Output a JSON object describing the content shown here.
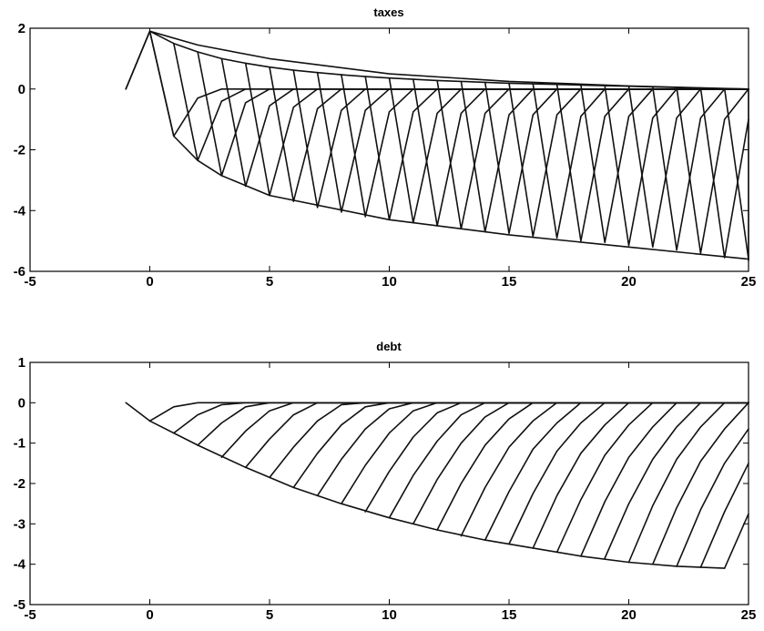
{
  "chart_data": [
    {
      "type": "line",
      "title": "taxes",
      "xlabel": "",
      "ylabel": "",
      "xlim": [
        -5,
        25
      ],
      "ylim": [
        -6,
        2
      ],
      "xticks": [
        -5,
        0,
        5,
        10,
        15,
        20,
        25
      ],
      "yticks": [
        -6,
        -4,
        -2,
        0,
        2
      ],
      "xtick_labels": [
        "-5",
        "0",
        "5",
        "10",
        "15",
        "20",
        "25"
      ],
      "ytick_labels": [
        "-6",
        "-4",
        "-2",
        "0",
        "2"
      ],
      "grid": false,
      "legend": "none",
      "description": "Family of impulse-response paths of taxes, one starting at each period s = -1..25; each path jumps to an upper envelope at s, then drops sharply at s+1 and decays back to 0.",
      "envelopes": [
        {
          "x": [
            -1,
            0,
            2,
            5,
            10,
            15,
            20,
            25
          ],
          "y": [
            0,
            1.9,
            1.45,
            1.0,
            0.5,
            0.25,
            0.1,
            0
          ]
        },
        {
          "x": [
            0,
            1,
            2,
            3,
            5,
            10,
            15,
            20,
            25
          ],
          "y": [
            1.9,
            -1.55,
            -2.35,
            -2.85,
            -3.5,
            -4.3,
            -4.8,
            -5.2,
            -5.6
          ]
        }
      ],
      "series": [
        {
          "x": [
            -1,
            0,
            1,
            2,
            3,
            4,
            5,
            6,
            7,
            8,
            9,
            10,
            11,
            12,
            13,
            14,
            15,
            16,
            17,
            18,
            19,
            20,
            21,
            22,
            23,
            24,
            25
          ],
          "y": [
            0,
            1.9,
            1.5,
            1.22,
            1.0,
            0.85,
            0.72,
            0.62,
            0.54,
            0.47,
            0.41,
            0.36,
            0.32,
            0.28,
            0.25,
            0.22,
            0.19,
            0.17,
            0.15,
            0.13,
            0.11,
            0.09,
            0.07,
            0.05,
            0.03,
            0.01,
            0
          ]
        },
        {
          "x": [
            0,
            1,
            2,
            3,
            25
          ],
          "y": [
            1.9,
            -1.55,
            -0.3,
            0,
            0
          ]
        },
        {
          "x": [
            1,
            2,
            3,
            4,
            25
          ],
          "y": [
            1.5,
            -2.35,
            -0.4,
            0,
            0
          ]
        },
        {
          "x": [
            2,
            3,
            4,
            5,
            25
          ],
          "y": [
            1.22,
            -2.85,
            -0.45,
            0,
            0
          ]
        },
        {
          "x": [
            3,
            4,
            5,
            6,
            25
          ],
          "y": [
            1.0,
            -3.2,
            -0.55,
            0,
            0
          ]
        },
        {
          "x": [
            4,
            5,
            6,
            7,
            25
          ],
          "y": [
            0.85,
            -3.5,
            -0.6,
            0,
            0
          ]
        },
        {
          "x": [
            5,
            6,
            7,
            8,
            25
          ],
          "y": [
            0.72,
            -3.7,
            -0.65,
            0,
            0
          ]
        },
        {
          "x": [
            6,
            7,
            8,
            9,
            25
          ],
          "y": [
            0.62,
            -3.9,
            -0.7,
            0,
            0
          ]
        },
        {
          "x": [
            7,
            8,
            9,
            10,
            25
          ],
          "y": [
            0.54,
            -4.05,
            -0.7,
            0,
            0
          ]
        },
        {
          "x": [
            8,
            9,
            10,
            11,
            25
          ],
          "y": [
            0.47,
            -4.2,
            -0.75,
            0,
            0
          ]
        },
        {
          "x": [
            9,
            10,
            11,
            12,
            25
          ],
          "y": [
            0.41,
            -4.3,
            -0.75,
            0,
            0
          ]
        },
        {
          "x": [
            10,
            11,
            12,
            13,
            25
          ],
          "y": [
            0.36,
            -4.4,
            -0.8,
            0,
            0
          ]
        },
        {
          "x": [
            11,
            12,
            13,
            14,
            25
          ],
          "y": [
            0.32,
            -4.5,
            -0.8,
            0,
            0
          ]
        },
        {
          "x": [
            12,
            13,
            14,
            15,
            25
          ],
          "y": [
            0.28,
            -4.6,
            -0.8,
            0,
            0
          ]
        },
        {
          "x": [
            13,
            14,
            15,
            16,
            25
          ],
          "y": [
            0.25,
            -4.7,
            -0.85,
            0,
            0
          ]
        },
        {
          "x": [
            14,
            15,
            16,
            17,
            25
          ],
          "y": [
            0.22,
            -4.75,
            -0.85,
            0,
            0
          ]
        },
        {
          "x": [
            15,
            16,
            17,
            18,
            25
          ],
          "y": [
            0.19,
            -4.85,
            -0.85,
            0,
            0
          ]
        },
        {
          "x": [
            16,
            17,
            18,
            19,
            25
          ],
          "y": [
            0.17,
            -4.9,
            -0.9,
            0,
            0
          ]
        },
        {
          "x": [
            17,
            18,
            19,
            20,
            25
          ],
          "y": [
            0.15,
            -5.0,
            -0.9,
            0,
            0
          ]
        },
        {
          "x": [
            18,
            19,
            20,
            21,
            25
          ],
          "y": [
            0.13,
            -5.05,
            -0.9,
            0,
            0
          ]
        },
        {
          "x": [
            19,
            20,
            21,
            22,
            25
          ],
          "y": [
            0.11,
            -5.15,
            -0.95,
            0,
            0
          ]
        },
        {
          "x": [
            20,
            21,
            22,
            23,
            25
          ],
          "y": [
            0.09,
            -5.2,
            -0.95,
            0,
            0
          ]
        },
        {
          "x": [
            21,
            22,
            23,
            24,
            25
          ],
          "y": [
            0.07,
            -5.3,
            -0.95,
            0,
            0
          ]
        },
        {
          "x": [
            22,
            23,
            24,
            25
          ],
          "y": [
            0.05,
            -5.4,
            -1.0,
            0
          ]
        },
        {
          "x": [
            23,
            24,
            25
          ],
          "y": [
            0.03,
            -5.55,
            -1.0
          ]
        },
        {
          "x": [
            24,
            25
          ],
          "y": [
            0.01,
            -5.6
          ]
        },
        {
          "x": [
            25,
            25
          ],
          "y": [
            0,
            -5.65
          ]
        }
      ]
    },
    {
      "type": "line",
      "title": "debt",
      "xlabel": "",
      "ylabel": "",
      "xlim": [
        -5,
        25
      ],
      "ylim": [
        -5,
        1
      ],
      "xticks": [
        -5,
        0,
        5,
        10,
        15,
        20,
        25
      ],
      "yticks": [
        -5,
        -4,
        -3,
        -2,
        -1,
        0,
        1
      ],
      "xtick_labels": [
        "-5",
        "0",
        "5",
        "10",
        "15",
        "20",
        "25"
      ],
      "ytick_labels": [
        "-5",
        "-4",
        "-3",
        "-2",
        "-1",
        "0",
        "1"
      ],
      "grid": false,
      "legend": "none",
      "description": "Family of impulse-response paths of debt, one starting at each period s; each path starts on the declining lower envelope and rises concavely back to 0.",
      "series": [
        {
          "x": [
            -1,
            0
          ],
          "y": [
            0,
            -0.45
          ]
        },
        {
          "x": [
            0,
            2,
            4,
            6,
            8,
            10,
            12,
            14,
            16,
            18,
            20,
            22,
            24
          ],
          "y": [
            -0.45,
            -1.05,
            -1.6,
            -2.1,
            -2.5,
            -2.85,
            -3.15,
            -3.4,
            -3.6,
            -3.8,
            -3.95,
            -4.05,
            -4.1
          ]
        },
        {
          "x": [
            0,
            1,
            2,
            25
          ],
          "y": [
            -0.45,
            -0.1,
            0,
            0
          ]
        },
        {
          "x": [
            1,
            2,
            3,
            4,
            25
          ],
          "y": [
            -0.75,
            -0.3,
            -0.05,
            0,
            0
          ]
        },
        {
          "x": [
            2,
            3,
            4,
            5,
            25
          ],
          "y": [
            -1.05,
            -0.5,
            -0.1,
            0,
            0
          ]
        },
        {
          "x": [
            3,
            4,
            5,
            6,
            25
          ],
          "y": [
            -1.35,
            -0.7,
            -0.2,
            0,
            0
          ]
        },
        {
          "x": [
            4,
            5,
            6,
            7,
            25
          ],
          "y": [
            -1.6,
            -0.9,
            -0.3,
            0,
            0
          ]
        },
        {
          "x": [
            5,
            6,
            7,
            8,
            9,
            25
          ],
          "y": [
            -1.85,
            -1.1,
            -0.45,
            -0.05,
            0,
            0
          ]
        },
        {
          "x": [
            6,
            7,
            8,
            9,
            10,
            25
          ],
          "y": [
            -2.1,
            -1.25,
            -0.55,
            -0.1,
            0,
            0
          ]
        },
        {
          "x": [
            7,
            8,
            9,
            10,
            11,
            25
          ],
          "y": [
            -2.3,
            -1.4,
            -0.65,
            -0.15,
            0,
            0
          ]
        },
        {
          "x": [
            8,
            9,
            10,
            11,
            12,
            25
          ],
          "y": [
            -2.5,
            -1.55,
            -0.75,
            -0.2,
            0,
            0
          ]
        },
        {
          "x": [
            9,
            10,
            11,
            12,
            13,
            25
          ],
          "y": [
            -2.7,
            -1.7,
            -0.85,
            -0.25,
            0,
            0
          ]
        },
        {
          "x": [
            10,
            11,
            12,
            13,
            14,
            25
          ],
          "y": [
            -2.85,
            -1.8,
            -0.95,
            -0.3,
            0,
            0
          ]
        },
        {
          "x": [
            11,
            12,
            13,
            14,
            15,
            25
          ],
          "y": [
            -3.0,
            -1.9,
            -1.0,
            -0.35,
            0,
            0
          ]
        },
        {
          "x": [
            12,
            13,
            14,
            15,
            16,
            25
          ],
          "y": [
            -3.15,
            -2.0,
            -1.05,
            -0.4,
            0,
            0
          ]
        },
        {
          "x": [
            13,
            14,
            15,
            16,
            17,
            25
          ],
          "y": [
            -3.3,
            -2.1,
            -1.1,
            -0.45,
            0,
            0
          ]
        },
        {
          "x": [
            14,
            15,
            16,
            17,
            18,
            25
          ],
          "y": [
            -3.4,
            -2.2,
            -1.15,
            -0.5,
            0,
            0
          ]
        },
        {
          "x": [
            15,
            16,
            17,
            18,
            19,
            25
          ],
          "y": [
            -3.5,
            -2.25,
            -1.2,
            -0.5,
            0,
            0
          ]
        },
        {
          "x": [
            16,
            17,
            18,
            19,
            20,
            25
          ],
          "y": [
            -3.6,
            -2.3,
            -1.25,
            -0.55,
            0,
            0
          ]
        },
        {
          "x": [
            17,
            18,
            19,
            20,
            21,
            25
          ],
          "y": [
            -3.7,
            -2.4,
            -1.3,
            -0.55,
            0,
            0
          ]
        },
        {
          "x": [
            18,
            19,
            20,
            21,
            22,
            25
          ],
          "y": [
            -3.8,
            -2.45,
            -1.35,
            -0.6,
            0,
            0
          ]
        },
        {
          "x": [
            19,
            20,
            21,
            22,
            23,
            25
          ],
          "y": [
            -3.85,
            -2.5,
            -1.4,
            -0.6,
            0,
            0
          ]
        },
        {
          "x": [
            20,
            21,
            22,
            23,
            24,
            25
          ],
          "y": [
            -3.95,
            -2.55,
            -1.4,
            -0.6,
            0,
            0
          ]
        },
        {
          "x": [
            21,
            22,
            23,
            24,
            25
          ],
          "y": [
            -4.0,
            -2.6,
            -1.45,
            -0.65,
            0
          ]
        },
        {
          "x": [
            22,
            23,
            24,
            25
          ],
          "y": [
            -4.05,
            -2.65,
            -1.5,
            -0.65
          ]
        },
        {
          "x": [
            23,
            24,
            25
          ],
          "y": [
            -4.08,
            -2.7,
            -1.5
          ]
        },
        {
          "x": [
            24,
            25
          ],
          "y": [
            -4.1,
            -2.75
          ]
        }
      ]
    }
  ]
}
